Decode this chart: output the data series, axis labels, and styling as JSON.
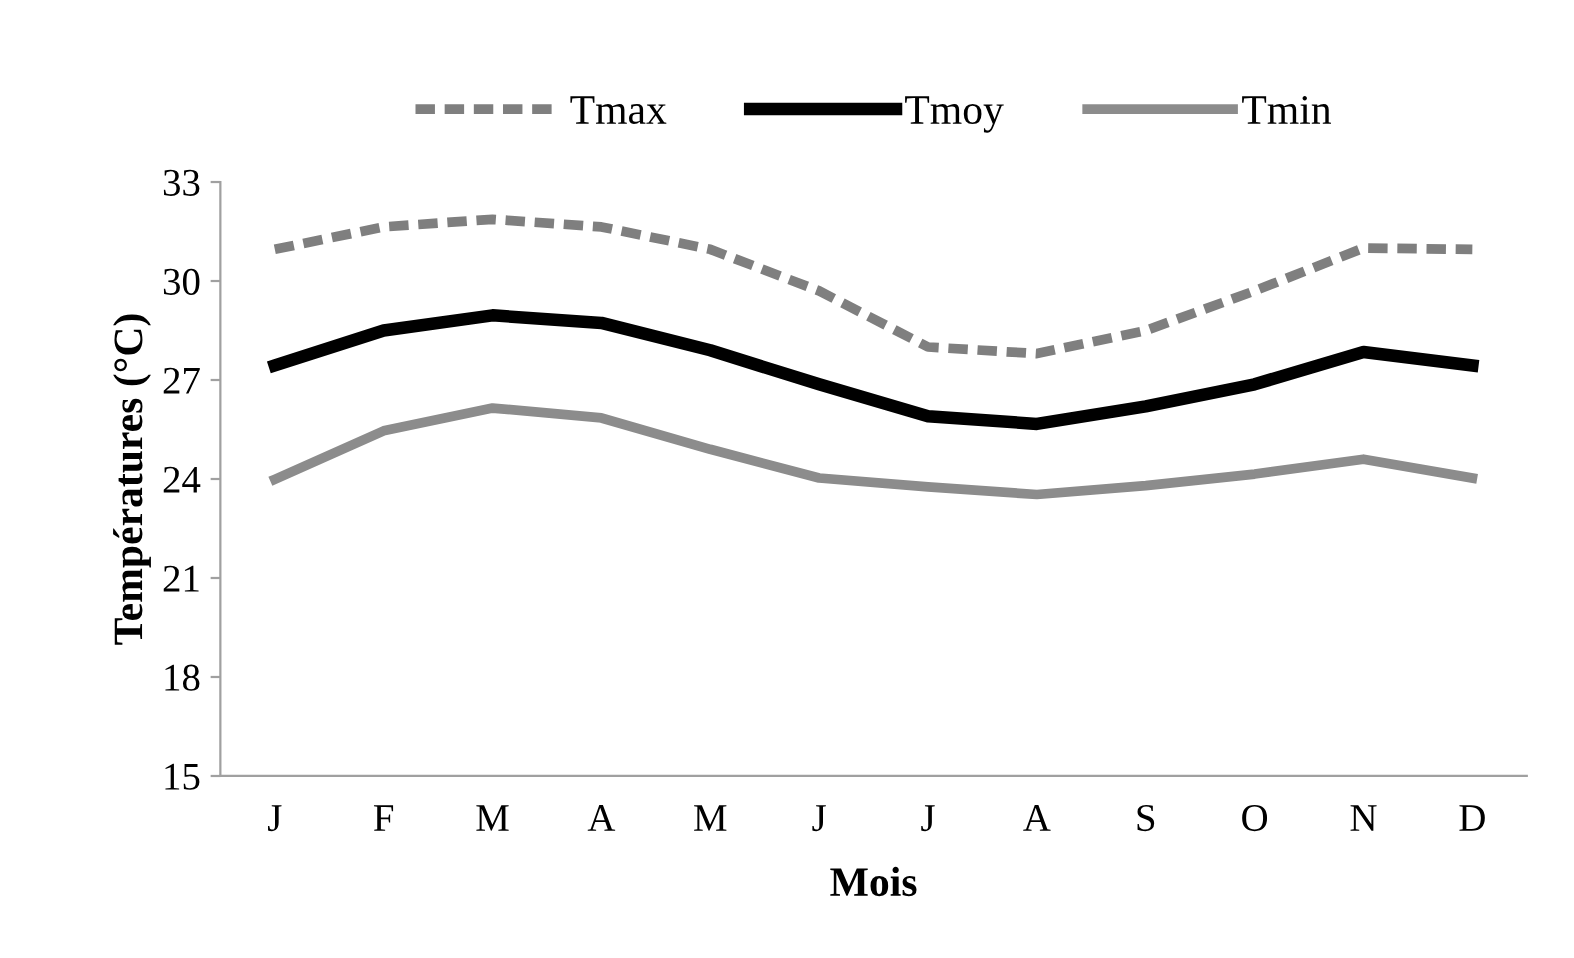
{
  "chart_data": {
    "type": "line",
    "xlabel": "Mois",
    "ylabel": "Températures (°C)",
    "categories": [
      "J",
      "F",
      "M",
      "A",
      "M",
      "J",
      "J",
      "A",
      "S",
      "O",
      "N",
      "D"
    ],
    "series": [
      {
        "name": "Tmax",
        "color": "#7f7f7f",
        "line_style": "dashed",
        "values": [
          30.96,
          31.64,
          31.87,
          31.64,
          30.96,
          29.7,
          28.0,
          27.8,
          28.5,
          29.7,
          31.0,
          30.96
        ]
      },
      {
        "name": "Tmoy",
        "color": "#000000",
        "line_style": "solid",
        "values": [
          27.44,
          28.5,
          28.96,
          28.73,
          27.9,
          26.87,
          25.9,
          25.67,
          26.2,
          26.87,
          27.85,
          27.44
        ]
      },
      {
        "name": "Tmin",
        "color": "#8c8c8c",
        "line_style": "solid",
        "values": [
          23.99,
          25.46,
          26.15,
          25.85,
          24.9,
          24.03,
          23.76,
          23.53,
          23.8,
          24.15,
          24.6,
          24.03
        ]
      }
    ],
    "ylim": [
      15,
      33
    ],
    "yticks": [
      15,
      18,
      21,
      24,
      27,
      30,
      33
    ],
    "grid": false,
    "legend": "top",
    "marker": "none"
  }
}
